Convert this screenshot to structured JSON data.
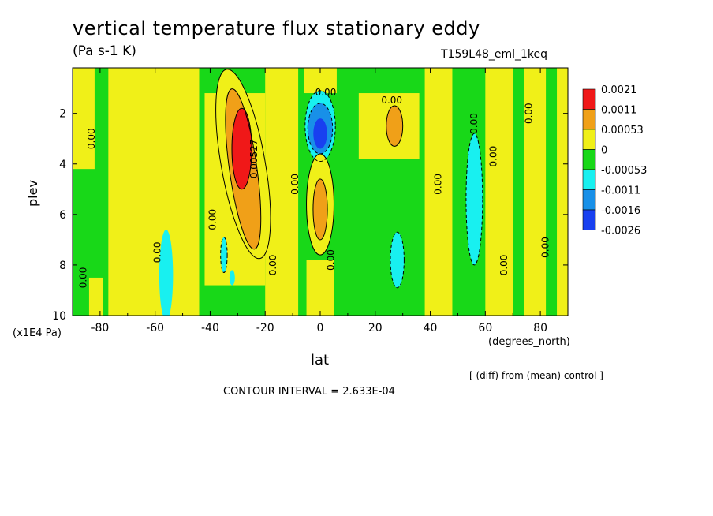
{
  "figure": {
    "title": "vertical temperature flux stationary eddy",
    "subtitle": "(Pa s-1 K)",
    "run_id": "T159L48_eml_1keq",
    "note": "[ (diff) from (mean) control ]",
    "contour_interval": "CONTOUR INTERVAL = 2.633E-04"
  },
  "chart_data": {
    "type": "heatmap",
    "xlabel": "lat",
    "xunit": "(degrees_north)",
    "ylabel": "plev",
    "yunit": "(x1E4 Pa)",
    "xlim": [
      -90,
      90
    ],
    "ylim": [
      10,
      0.2
    ],
    "x_ticks": [
      -80,
      -60,
      -40,
      -20,
      0,
      20,
      40,
      60,
      80
    ],
    "y_ticks": [
      2,
      4,
      6,
      8,
      10
    ],
    "contour_labels": [
      "0.00",
      "0.00",
      "0.00",
      "0.00",
      "0.00",
      "0.00",
      "0.00",
      "0.00",
      "0.00",
      "0.00",
      "0.00",
      "0.00",
      "0.00",
      "0.00",
      "0.00",
      "0.00527"
    ],
    "colorbar": {
      "labels": [
        "0.0021",
        "0.0011",
        "0.00053",
        "0",
        "-0.00053",
        "-0.0011",
        "-0.0016",
        "-0.0026"
      ],
      "colors": [
        "#f01818",
        "#f0a018",
        "#f0f018",
        "#18d818",
        "#18f0f0",
        "#1890e8",
        "#1840f0"
      ]
    },
    "features": [
      {
        "kind": "max",
        "lat": -29,
        "plev": 3.4,
        "value": 0.0021
      },
      {
        "kind": "max",
        "lat": 27,
        "plev": 2.5,
        "value": 0.0011
      },
      {
        "kind": "max",
        "lat": 0,
        "plev": 5.9,
        "value": 0.00053
      },
      {
        "kind": "min",
        "lat": 0,
        "plev": 2.6,
        "value": -0.0016
      },
      {
        "kind": "min",
        "lat": 56,
        "plev": 5.5,
        "value": -0.0011
      },
      {
        "kind": "min",
        "lat": 27,
        "plev": 7.8,
        "value": -0.0011
      },
      {
        "kind": "min",
        "lat": -34,
        "plev": 7.8,
        "value": -0.0011
      }
    ]
  }
}
